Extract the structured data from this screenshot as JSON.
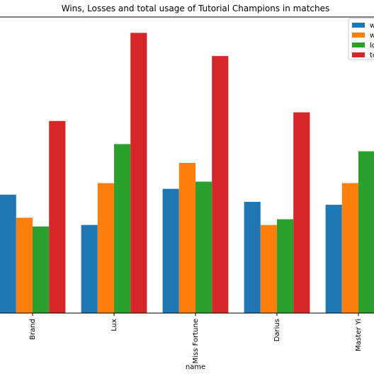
{
  "chart_data": {
    "type": "bar",
    "title": "Wins, Losses and total usage of Tutorial Champions in matches",
    "xlabel": "name",
    "ylabel": "",
    "categories": [
      "Brand",
      "Lux",
      "Miss Fortune",
      "Darius",
      "Master Yi"
    ],
    "series": [
      {
        "name": "w",
        "color": "#1f77b4",
        "values": [
          52,
          31,
          56,
          47,
          45
        ]
      },
      {
        "name": "w",
        "color": "#ff7f0e",
        "values": [
          36,
          60,
          74,
          31,
          60
        ]
      },
      {
        "name": "lo",
        "color": "#2ca02c",
        "values": [
          30,
          87,
          61,
          35,
          82
        ]
      },
      {
        "name": "to",
        "color": "#d62728",
        "values": [
          103,
          164,
          148,
          109,
          null
        ]
      }
    ],
    "ylim": [
      -30,
      175
    ],
    "grid": false,
    "legend_position": "top-right"
  }
}
